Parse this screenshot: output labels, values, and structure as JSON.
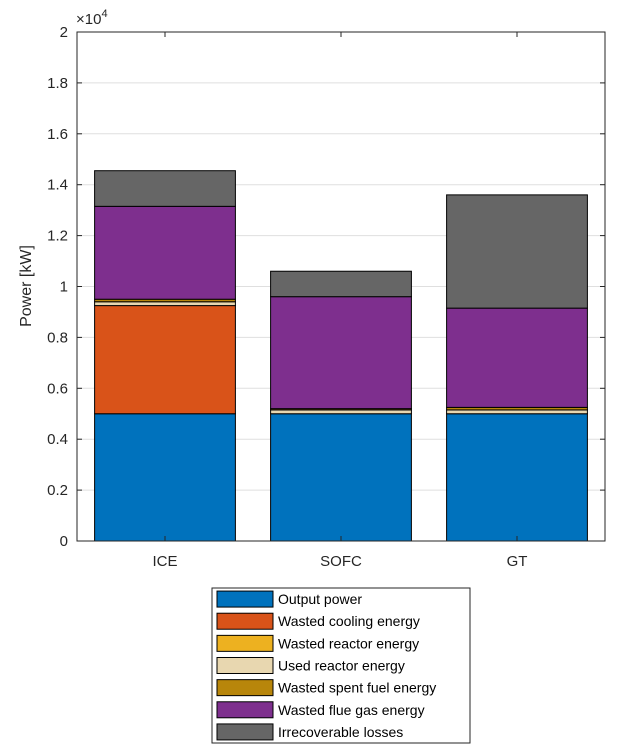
{
  "chart_data": {
    "type": "bar",
    "stacked": true,
    "categories": [
      "ICE",
      "SOFC",
      "GT"
    ],
    "ylabel": "Power [kW]",
    "xlabel": "",
    "ylim": [
      0,
      20000
    ],
    "yticks": [
      0,
      2000,
      4000,
      6000,
      8000,
      10000,
      12000,
      14000,
      16000,
      18000,
      20000
    ],
    "ytick_labels": [
      "0",
      "0.2",
      "0.4",
      "0.6",
      "0.8",
      "1",
      "1.2",
      "1.4",
      "1.6",
      "1.8",
      "2"
    ],
    "y_exponent_label": "×10",
    "y_exponent_power": "4",
    "grid": true,
    "legend_position": "bottom-center, outside",
    "series": [
      {
        "name": "Output power",
        "color": "#0072BD",
        "values": [
          5000,
          5000,
          5000
        ]
      },
      {
        "name": "Wasted cooling energy",
        "color": "#D95319",
        "values": [
          4250,
          0,
          0
        ]
      },
      {
        "name": "Wasted reactor energy",
        "color": "#EDB120",
        "values": [
          0,
          0,
          0
        ]
      },
      {
        "name": "Used reactor energy",
        "color": "#E8D7B0",
        "values": [
          150,
          150,
          150
        ]
      },
      {
        "name": "Wasted spent fuel energy",
        "color": "#B8860B",
        "values": [
          100,
          50,
          100
        ]
      },
      {
        "name": "Wasted flue gas energy",
        "color": "#7E2F8E",
        "values": [
          3650,
          4400,
          3900
        ]
      },
      {
        "name": "Irrecoverable losses",
        "color": "#666666",
        "values": [
          1400,
          1000,
          4450
        ]
      }
    ]
  }
}
